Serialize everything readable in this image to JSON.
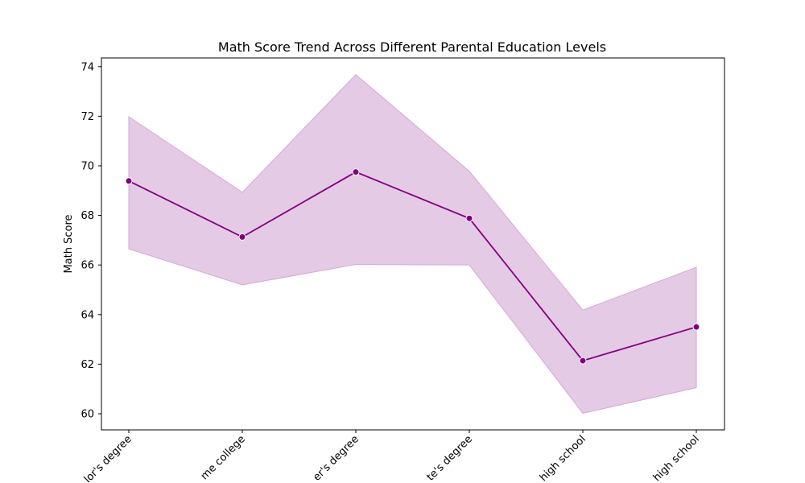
{
  "chart_data": {
    "type": "line",
    "title": "Math Score Trend Across Different Parental Education Levels",
    "xlabel": "",
    "ylabel": "Math Score",
    "categories": [
      "bachelor's degree",
      "some college",
      "master's degree",
      "associate's degree",
      "high school",
      "some high school"
    ],
    "visible_tick_labels": [
      "lor's degree",
      "me college",
      "er's degree",
      "te's degree",
      "high school",
      "high school"
    ],
    "series": [
      {
        "values": [
          69.39,
          67.13,
          69.75,
          67.88,
          62.14,
          63.5
        ],
        "ci_lower": [
          66.65,
          65.2,
          66.02,
          66.0,
          60.02,
          61.05
        ],
        "ci_upper": [
          71.98,
          68.93,
          73.68,
          69.78,
          64.18,
          65.91
        ],
        "color": "#800080",
        "band_color": "#e4cae4",
        "band_edge_color": "#d4a9d4"
      }
    ],
    "ylim": [
      59.35,
      74.35
    ],
    "yticks": [
      60,
      62,
      64,
      66,
      68,
      70,
      72,
      74
    ],
    "grid": false,
    "legend": "none",
    "x_tick_rotation": "45 degrees"
  }
}
